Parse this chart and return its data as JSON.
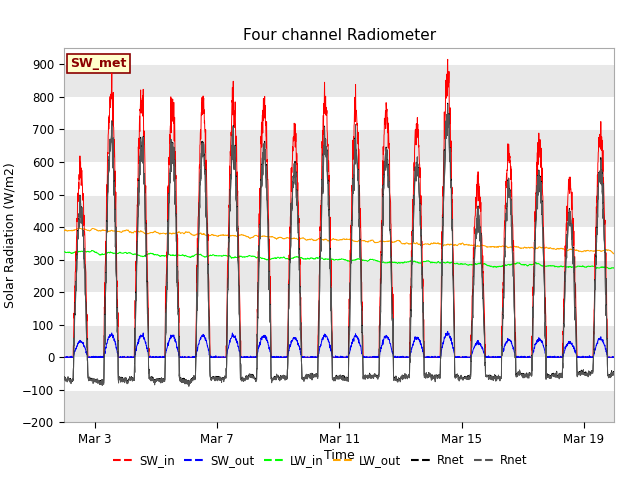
{
  "title": "Four channel Radiometer",
  "xlabel": "Time",
  "ylabel": "Solar Radiation (W/m2)",
  "ylim": [
    -200,
    950
  ],
  "yticks": [
    -200,
    -100,
    0,
    100,
    200,
    300,
    400,
    500,
    600,
    700,
    800,
    900
  ],
  "fig_bg_color": "#ffffff",
  "plot_bg_color": "#ffffff",
  "grid_color": "#e0e0e0",
  "annotation_text": "SW_met",
  "annotation_box_color": "#ffffcc",
  "annotation_border_color": "#8b0000",
  "colors": {
    "SW_in": "#ff0000",
    "SW_out": "#0000ff",
    "LW_in": "#00ff00",
    "LW_out": "#ffa500",
    "Rnet": "#000000",
    "Rnet2": "#555555"
  },
  "xtick_labels": [
    "Mar 3",
    "Mar 7",
    "Mar 11",
    "Mar 15",
    "Mar 19"
  ],
  "xtick_positions": [
    3,
    7,
    11,
    15,
    19
  ],
  "num_days": 18,
  "num_points_per_day": 144,
  "seed": 42
}
